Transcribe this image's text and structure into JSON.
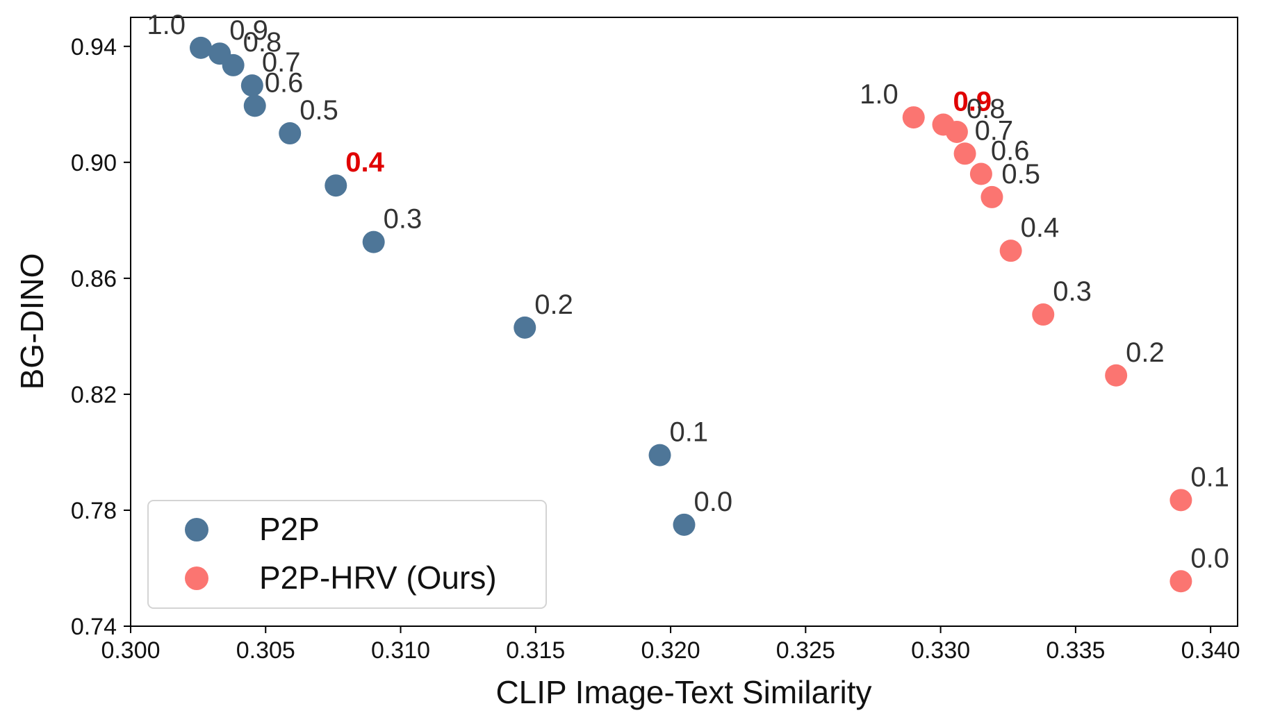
{
  "chart_data": {
    "type": "scatter",
    "title": "",
    "xlabel": "CLIP Image-Text Similarity",
    "ylabel": "BG-DINO",
    "xlim": [
      0.3,
      0.341
    ],
    "ylim": [
      0.74,
      0.95
    ],
    "xticks": [
      "0.300",
      "0.305",
      "0.310",
      "0.315",
      "0.320",
      "0.325",
      "0.330",
      "0.335",
      "0.340"
    ],
    "yticks": [
      "0.74",
      "0.78",
      "0.82",
      "0.86",
      "0.90",
      "0.94"
    ],
    "grid": false,
    "legend_position": "bottom-left",
    "series": [
      {
        "name": "P2P",
        "color": "#4e7698",
        "points": [
          {
            "x": 0.3026,
            "y": 0.9395,
            "label": "1.0",
            "highlight": false
          },
          {
            "x": 0.3033,
            "y": 0.9375,
            "label": "0.9",
            "highlight": false
          },
          {
            "x": 0.3038,
            "y": 0.9335,
            "label": "0.8",
            "highlight": false
          },
          {
            "x": 0.3045,
            "y": 0.9265,
            "label": "0.7",
            "highlight": false
          },
          {
            "x": 0.3046,
            "y": 0.9195,
            "label": "0.6",
            "highlight": false
          },
          {
            "x": 0.3059,
            "y": 0.91,
            "label": "0.5",
            "highlight": false
          },
          {
            "x": 0.3076,
            "y": 0.892,
            "label": "0.4",
            "highlight": true
          },
          {
            "x": 0.309,
            "y": 0.8725,
            "label": "0.3",
            "highlight": false
          },
          {
            "x": 0.3146,
            "y": 0.843,
            "label": "0.2",
            "highlight": false
          },
          {
            "x": 0.3196,
            "y": 0.799,
            "label": "0.1",
            "highlight": false
          },
          {
            "x": 0.3205,
            "y": 0.775,
            "label": "0.0",
            "highlight": false
          }
        ]
      },
      {
        "name": "P2P-HRV (Ours)",
        "color": "#fb7571",
        "points": [
          {
            "x": 0.329,
            "y": 0.9155,
            "label": "1.0",
            "highlight": false
          },
          {
            "x": 0.3301,
            "y": 0.913,
            "label": "0.9",
            "highlight": true
          },
          {
            "x": 0.3306,
            "y": 0.9105,
            "label": "0.8",
            "highlight": false
          },
          {
            "x": 0.3309,
            "y": 0.903,
            "label": "0.7",
            "highlight": false
          },
          {
            "x": 0.3315,
            "y": 0.896,
            "label": "0.6",
            "highlight": false
          },
          {
            "x": 0.3319,
            "y": 0.888,
            "label": "0.5",
            "highlight": false
          },
          {
            "x": 0.3326,
            "y": 0.8695,
            "label": "0.4",
            "highlight": false
          },
          {
            "x": 0.3338,
            "y": 0.8475,
            "label": "0.3",
            "highlight": false
          },
          {
            "x": 0.3365,
            "y": 0.8265,
            "label": "0.2",
            "highlight": false
          },
          {
            "x": 0.3389,
            "y": 0.7835,
            "label": "0.1",
            "highlight": false
          },
          {
            "x": 0.3389,
            "y": 0.7555,
            "label": "0.0",
            "highlight": false
          }
        ]
      }
    ]
  }
}
